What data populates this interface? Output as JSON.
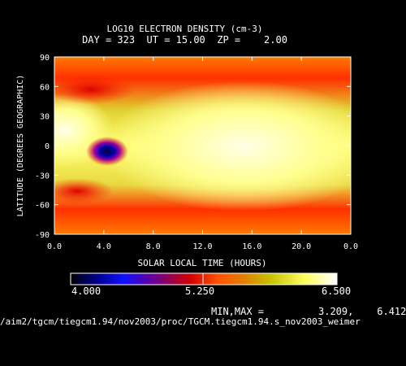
{
  "chart_data": {
    "type": "heatmap",
    "title": "LOG10 ELECTRON DENSITY (cm-3)",
    "subtitle": "DAY = 323  UT = 15.00  ZP =    2.00",
    "xlabel": "SOLAR LOCAL TIME (HOURS)",
    "ylabel": "LATITUDE (DEGREES GEOGRAPHIC)",
    "x_ticks": [
      "0.0",
      "4.0",
      "8.0",
      "12.0",
      "16.0",
      "20.0",
      "0.0"
    ],
    "y_ticks": [
      "90",
      "60",
      "30",
      "0",
      "-30",
      "-60",
      "-90"
    ],
    "y_range": [
      -90,
      90
    ],
    "colorbar": {
      "min": "4.000",
      "mid": "5.250",
      "max": "6.500"
    },
    "minmax_label": "MIN,MAX =",
    "minmax_value": "3.209,    6.412",
    "colors": {
      "low": "#0000aa",
      "mid": "#e00000",
      "high": "#ffffe8"
    }
  },
  "footer_path": "/aim2/tgcm/tiegcm1.94/nov2003/proc/TGCM.tiegcm1.94.s_nov2003_weimer"
}
